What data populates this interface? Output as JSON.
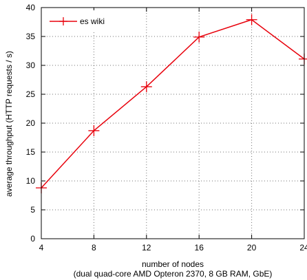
{
  "chart_data": {
    "type": "line",
    "title": "",
    "xlabel": "number of nodes",
    "xlabel_line2": "(dual quad-core AMD Opteron 2370, 8 GB RAM, GbE)",
    "ylabel": "average throughput (HTTP requests / s)",
    "xlim": [
      4,
      24
    ],
    "ylim": [
      0,
      40
    ],
    "x_ticks": [
      4,
      8,
      12,
      16,
      20,
      24
    ],
    "y_ticks": [
      0,
      5,
      10,
      15,
      20,
      25,
      30,
      35,
      40
    ],
    "grid": true,
    "legend_position": "top-left",
    "series": [
      {
        "name": "es wiki",
        "color": "#e8000b",
        "x": [
          4,
          8,
          12,
          16,
          20,
          24
        ],
        "y": [
          8.8,
          18.7,
          26.3,
          34.9,
          37.9,
          31.1
        ]
      }
    ]
  }
}
